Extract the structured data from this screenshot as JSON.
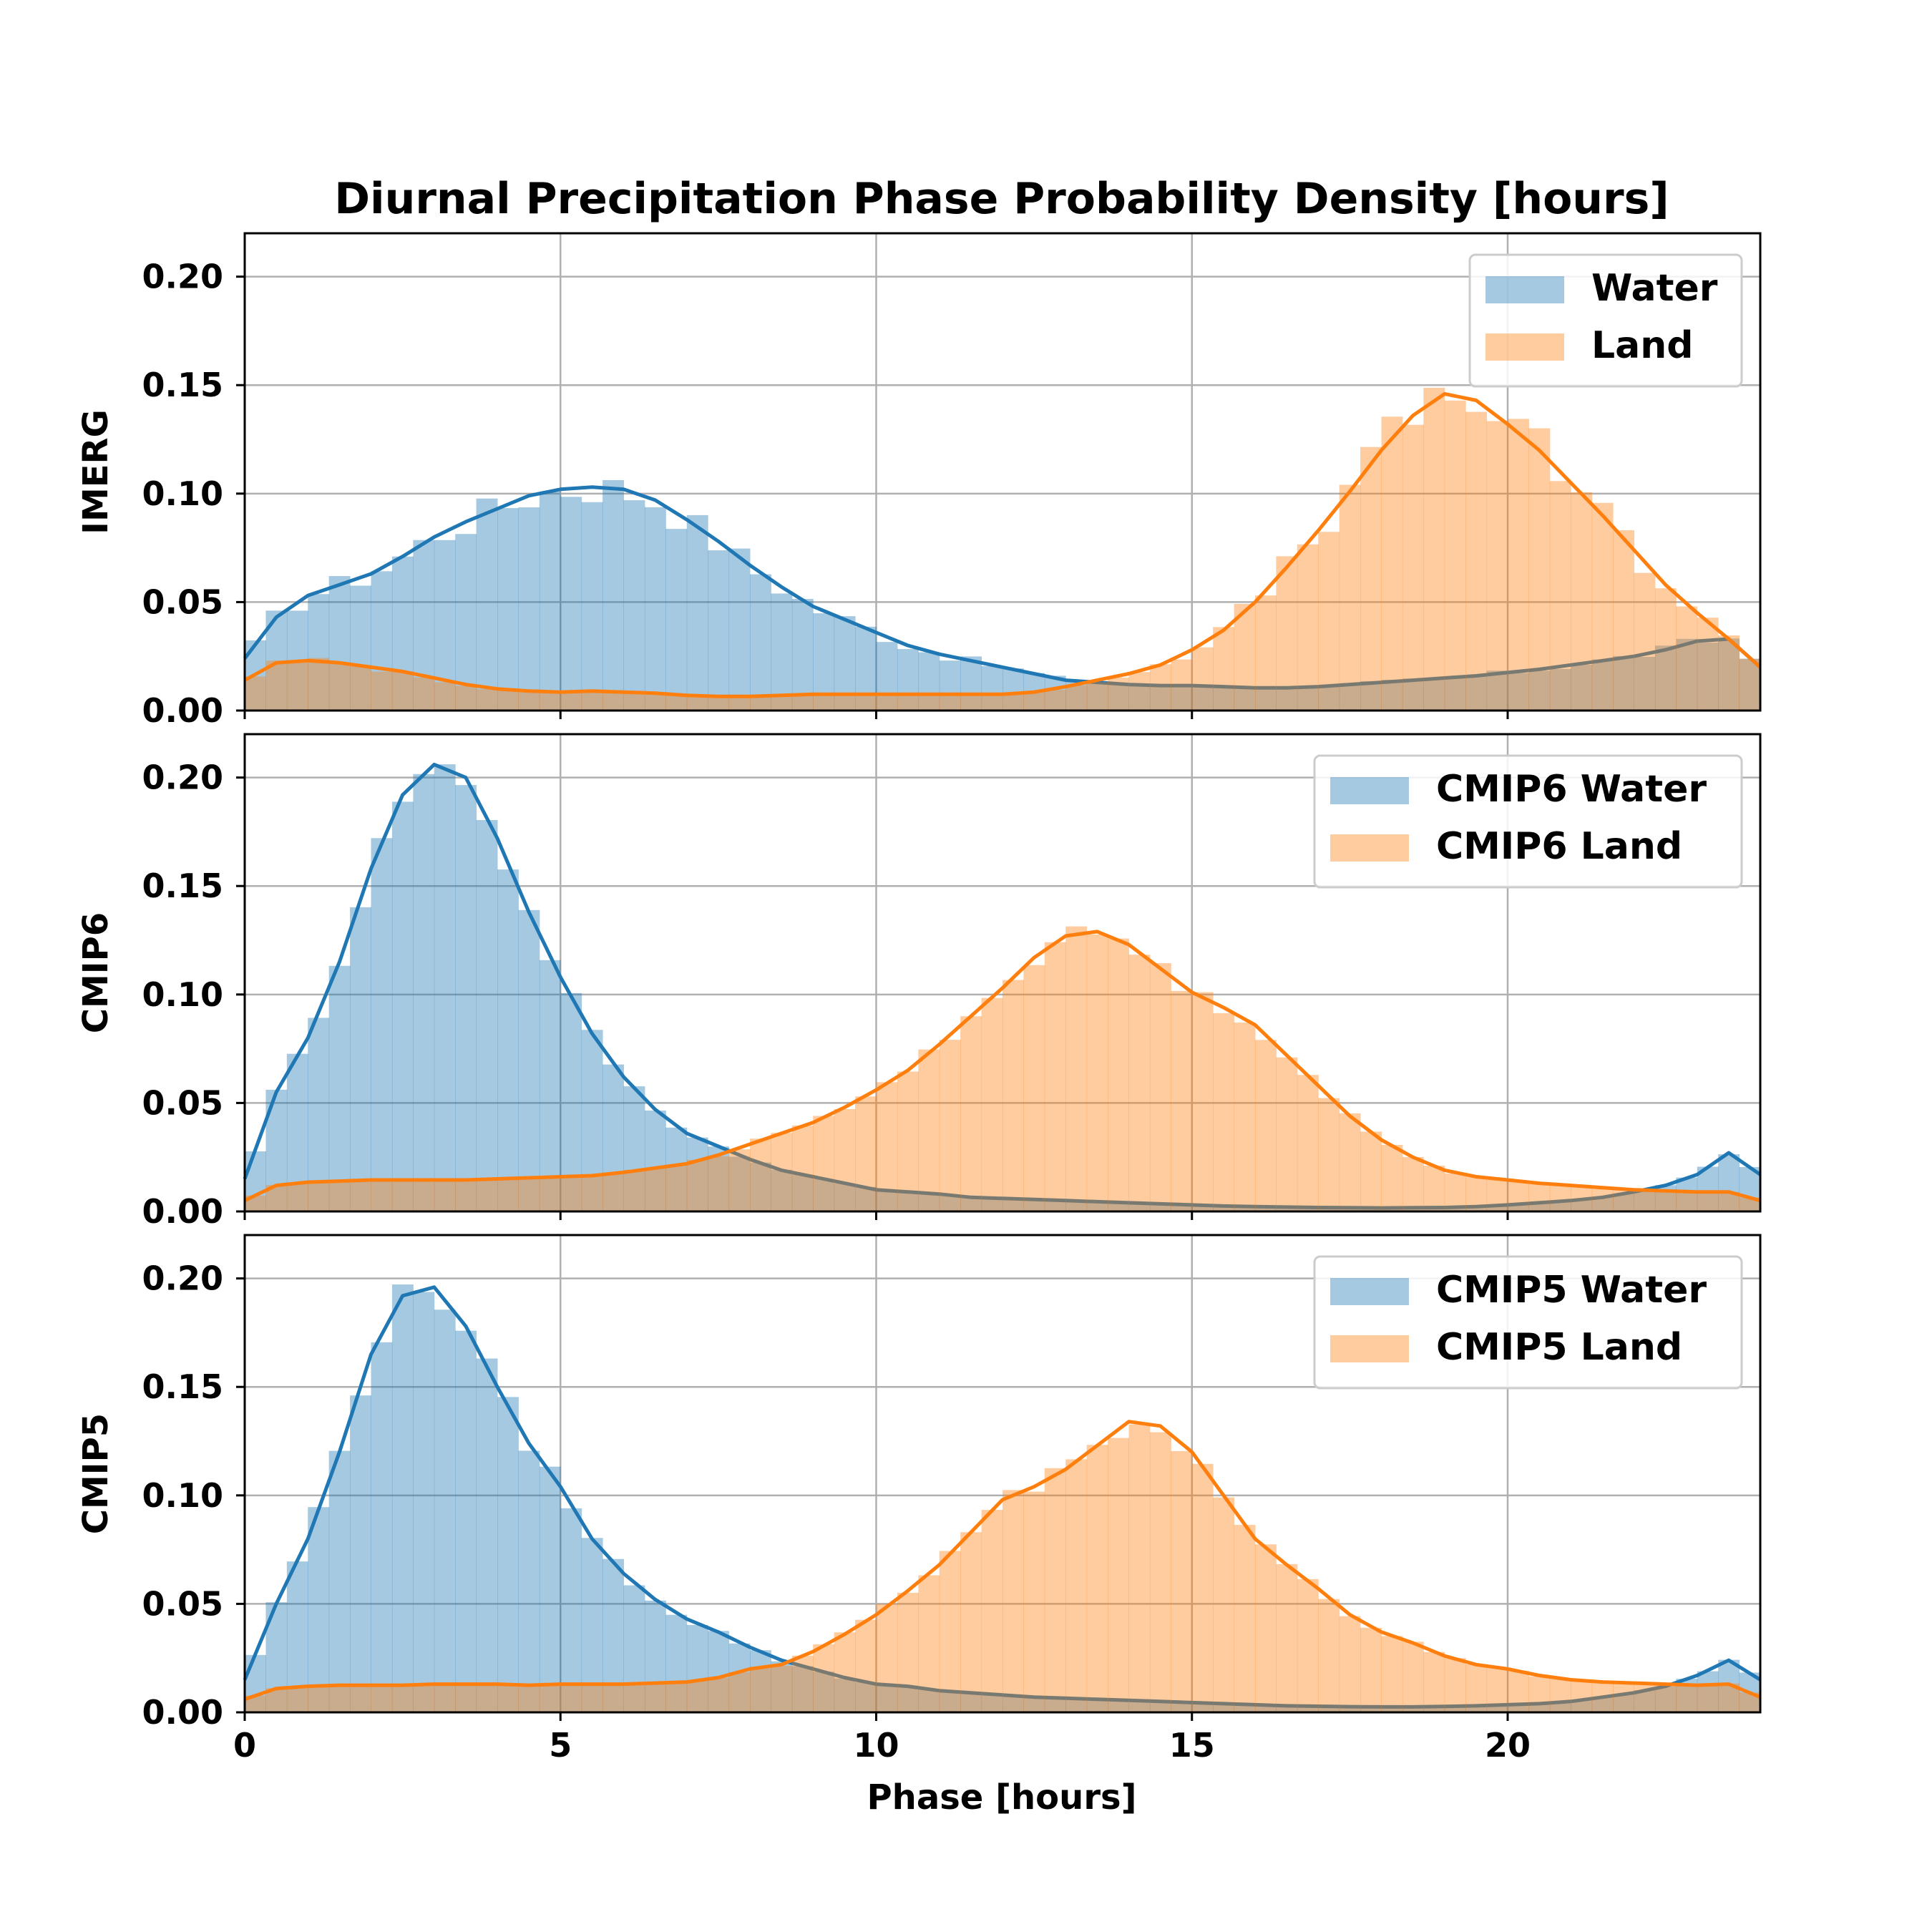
{
  "title": "Diurnal Precipitation Phase Probability Density [hours]",
  "xlabel": "Phase [hours]",
  "colors": {
    "water": "#1f77b4",
    "land": "#ff7f0e",
    "grid": "#b0b0b0"
  },
  "chart_data": [
    {
      "type": "area",
      "ylabel": "IMERG",
      "xlim": [
        0,
        24
      ],
      "ylim": [
        0,
        0.22
      ],
      "xticks": [
        "0",
        "5",
        "10",
        "15",
        "20"
      ],
      "yticks": [
        "0.00",
        "0.05",
        "0.10",
        "0.15",
        "0.20"
      ],
      "grid": true,
      "legend_position": "top-right",
      "series": [
        {
          "name": "Water",
          "color": "#1f77b4",
          "x": [
            0,
            0.5,
            1,
            1.5,
            2,
            2.5,
            3,
            3.5,
            4,
            4.5,
            5,
            5.5,
            6,
            6.5,
            7,
            7.5,
            8,
            8.5,
            9,
            9.5,
            10,
            10.5,
            11,
            11.5,
            12,
            12.5,
            13,
            13.5,
            14,
            14.5,
            15,
            15.5,
            16,
            16.5,
            17,
            17.5,
            18,
            18.5,
            19,
            19.5,
            20,
            20.5,
            21,
            21.5,
            22,
            22.5,
            23,
            23.5,
            24
          ],
          "y": [
            0.024,
            0.043,
            0.053,
            0.058,
            0.063,
            0.071,
            0.08,
            0.087,
            0.093,
            0.099,
            0.102,
            0.103,
            0.102,
            0.097,
            0.088,
            0.078,
            0.067,
            0.057,
            0.048,
            0.042,
            0.036,
            0.03,
            0.026,
            0.023,
            0.02,
            0.017,
            0.014,
            0.013,
            0.012,
            0.0115,
            0.0115,
            0.011,
            0.0105,
            0.0105,
            0.011,
            0.012,
            0.013,
            0.014,
            0.015,
            0.016,
            0.0175,
            0.019,
            0.021,
            0.023,
            0.025,
            0.028,
            0.032,
            0.033,
            0.02
          ]
        },
        {
          "name": "Land",
          "color": "#ff7f0e",
          "x": [
            0,
            0.5,
            1,
            1.5,
            2,
            2.5,
            3,
            3.5,
            4,
            4.5,
            5,
            5.5,
            6,
            6.5,
            7,
            7.5,
            8,
            8.5,
            9,
            9.5,
            10,
            10.5,
            11,
            11.5,
            12,
            12.5,
            13,
            13.5,
            14,
            14.5,
            15,
            15.5,
            16,
            16.5,
            17,
            17.5,
            18,
            18.5,
            19,
            19.5,
            20,
            20.5,
            21,
            21.5,
            22,
            22.5,
            23,
            23.5,
            24
          ],
          "y": [
            0.014,
            0.022,
            0.023,
            0.022,
            0.02,
            0.018,
            0.015,
            0.012,
            0.01,
            0.009,
            0.0085,
            0.009,
            0.0085,
            0.008,
            0.007,
            0.0065,
            0.0065,
            0.007,
            0.0075,
            0.0075,
            0.0075,
            0.0075,
            0.0075,
            0.0075,
            0.0075,
            0.0085,
            0.011,
            0.014,
            0.017,
            0.021,
            0.028,
            0.037,
            0.05,
            0.066,
            0.083,
            0.101,
            0.12,
            0.136,
            0.146,
            0.143,
            0.132,
            0.12,
            0.105,
            0.09,
            0.074,
            0.058,
            0.045,
            0.033,
            0.02
          ]
        }
      ]
    },
    {
      "type": "area",
      "ylabel": "CMIP6",
      "xlim": [
        0,
        24
      ],
      "ylim": [
        0,
        0.22
      ],
      "xticks": [
        "0",
        "5",
        "10",
        "15",
        "20"
      ],
      "yticks": [
        "0.00",
        "0.05",
        "0.10",
        "0.15",
        "0.20"
      ],
      "grid": true,
      "legend_position": "top-right",
      "series": [
        {
          "name": "CMIP6 Water",
          "color": "#1f77b4",
          "x": [
            0,
            0.5,
            1,
            1.5,
            2,
            2.5,
            3,
            3.5,
            4,
            4.5,
            5,
            5.5,
            6,
            6.5,
            7,
            7.5,
            8,
            8.5,
            9,
            9.5,
            10,
            10.5,
            11,
            11.5,
            12,
            12.5,
            13,
            13.5,
            14,
            14.5,
            15,
            15.5,
            16,
            16.5,
            17,
            17.5,
            18,
            18.5,
            19,
            19.5,
            20,
            20.5,
            21,
            21.5,
            22,
            22.5,
            23,
            23.5,
            24
          ],
          "y": [
            0.015,
            0.055,
            0.08,
            0.115,
            0.158,
            0.192,
            0.206,
            0.2,
            0.172,
            0.138,
            0.108,
            0.082,
            0.062,
            0.047,
            0.036,
            0.03,
            0.024,
            0.019,
            0.016,
            0.013,
            0.01,
            0.009,
            0.008,
            0.0065,
            0.006,
            0.0055,
            0.005,
            0.0045,
            0.004,
            0.0035,
            0.003,
            0.0025,
            0.0022,
            0.002,
            0.0018,
            0.0017,
            0.0016,
            0.0017,
            0.0018,
            0.0022,
            0.003,
            0.004,
            0.005,
            0.0065,
            0.009,
            0.012,
            0.017,
            0.027,
            0.017
          ]
        },
        {
          "name": "CMIP6 Land",
          "color": "#ff7f0e",
          "x": [
            0,
            0.5,
            1,
            1.5,
            2,
            2.5,
            3,
            3.5,
            4,
            4.5,
            5,
            5.5,
            6,
            6.5,
            7,
            7.5,
            8,
            8.5,
            9,
            9.5,
            10,
            10.5,
            11,
            11.5,
            12,
            12.5,
            13,
            13.5,
            14,
            14.5,
            15,
            15.5,
            16,
            16.5,
            17,
            17.5,
            18,
            18.5,
            19,
            19.5,
            20,
            20.5,
            21,
            21.5,
            22,
            22.5,
            23,
            23.5,
            24
          ],
          "y": [
            0.005,
            0.012,
            0.0135,
            0.014,
            0.0145,
            0.0145,
            0.0145,
            0.0145,
            0.015,
            0.0155,
            0.016,
            0.0165,
            0.018,
            0.02,
            0.022,
            0.026,
            0.031,
            0.036,
            0.041,
            0.048,
            0.056,
            0.065,
            0.077,
            0.09,
            0.103,
            0.117,
            0.127,
            0.129,
            0.123,
            0.112,
            0.101,
            0.094,
            0.086,
            0.072,
            0.058,
            0.044,
            0.033,
            0.025,
            0.019,
            0.016,
            0.0145,
            0.013,
            0.012,
            0.011,
            0.01,
            0.0095,
            0.009,
            0.009,
            0.005
          ]
        }
      ]
    },
    {
      "type": "area",
      "ylabel": "CMIP5",
      "xlim": [
        0,
        24
      ],
      "ylim": [
        0,
        0.22
      ],
      "xticks": [
        "0",
        "5",
        "10",
        "15",
        "20"
      ],
      "yticks": [
        "0.00",
        "0.05",
        "0.10",
        "0.15",
        "0.20"
      ],
      "grid": true,
      "legend_position": "top-right",
      "series": [
        {
          "name": "CMIP5 Water",
          "color": "#1f77b4",
          "x": [
            0,
            0.5,
            1,
            1.5,
            2,
            2.5,
            3,
            3.5,
            4,
            4.5,
            5,
            5.5,
            6,
            6.5,
            7,
            7.5,
            8,
            8.5,
            9,
            9.5,
            10,
            10.5,
            11,
            11.5,
            12,
            12.5,
            13,
            13.5,
            14,
            14.5,
            15,
            15.5,
            16,
            16.5,
            17,
            17.5,
            18,
            18.5,
            19,
            19.5,
            20,
            20.5,
            21,
            21.5,
            22,
            22.5,
            23,
            23.5,
            24
          ],
          "y": [
            0.015,
            0.05,
            0.08,
            0.12,
            0.165,
            0.192,
            0.196,
            0.178,
            0.15,
            0.124,
            0.104,
            0.08,
            0.064,
            0.052,
            0.043,
            0.037,
            0.03,
            0.024,
            0.02,
            0.016,
            0.013,
            0.012,
            0.01,
            0.009,
            0.008,
            0.007,
            0.0065,
            0.006,
            0.0055,
            0.005,
            0.0045,
            0.004,
            0.0035,
            0.003,
            0.0028,
            0.0026,
            0.0025,
            0.0025,
            0.0027,
            0.003,
            0.0035,
            0.004,
            0.005,
            0.007,
            0.009,
            0.012,
            0.017,
            0.024,
            0.015
          ]
        },
        {
          "name": "CMIP5 Land",
          "color": "#ff7f0e",
          "x": [
            0,
            0.5,
            1,
            1.5,
            2,
            2.5,
            3,
            3.5,
            4,
            4.5,
            5,
            5.5,
            6,
            6.5,
            7,
            7.5,
            8,
            8.5,
            9,
            9.5,
            10,
            10.5,
            11,
            11.5,
            12,
            12.5,
            13,
            13.5,
            14,
            14.5,
            15,
            15.5,
            16,
            16.5,
            17,
            17.5,
            18,
            18.5,
            19,
            19.5,
            20,
            20.5,
            21,
            21.5,
            22,
            22.5,
            23,
            23.5,
            24
          ],
          "y": [
            0.006,
            0.011,
            0.012,
            0.0125,
            0.0125,
            0.0125,
            0.013,
            0.013,
            0.013,
            0.0125,
            0.013,
            0.013,
            0.013,
            0.0135,
            0.014,
            0.016,
            0.02,
            0.022,
            0.028,
            0.036,
            0.045,
            0.056,
            0.068,
            0.083,
            0.098,
            0.104,
            0.112,
            0.123,
            0.134,
            0.132,
            0.12,
            0.1,
            0.08,
            0.068,
            0.057,
            0.045,
            0.037,
            0.032,
            0.026,
            0.022,
            0.02,
            0.017,
            0.015,
            0.014,
            0.0135,
            0.013,
            0.0125,
            0.013,
            0.007
          ]
        }
      ]
    }
  ]
}
